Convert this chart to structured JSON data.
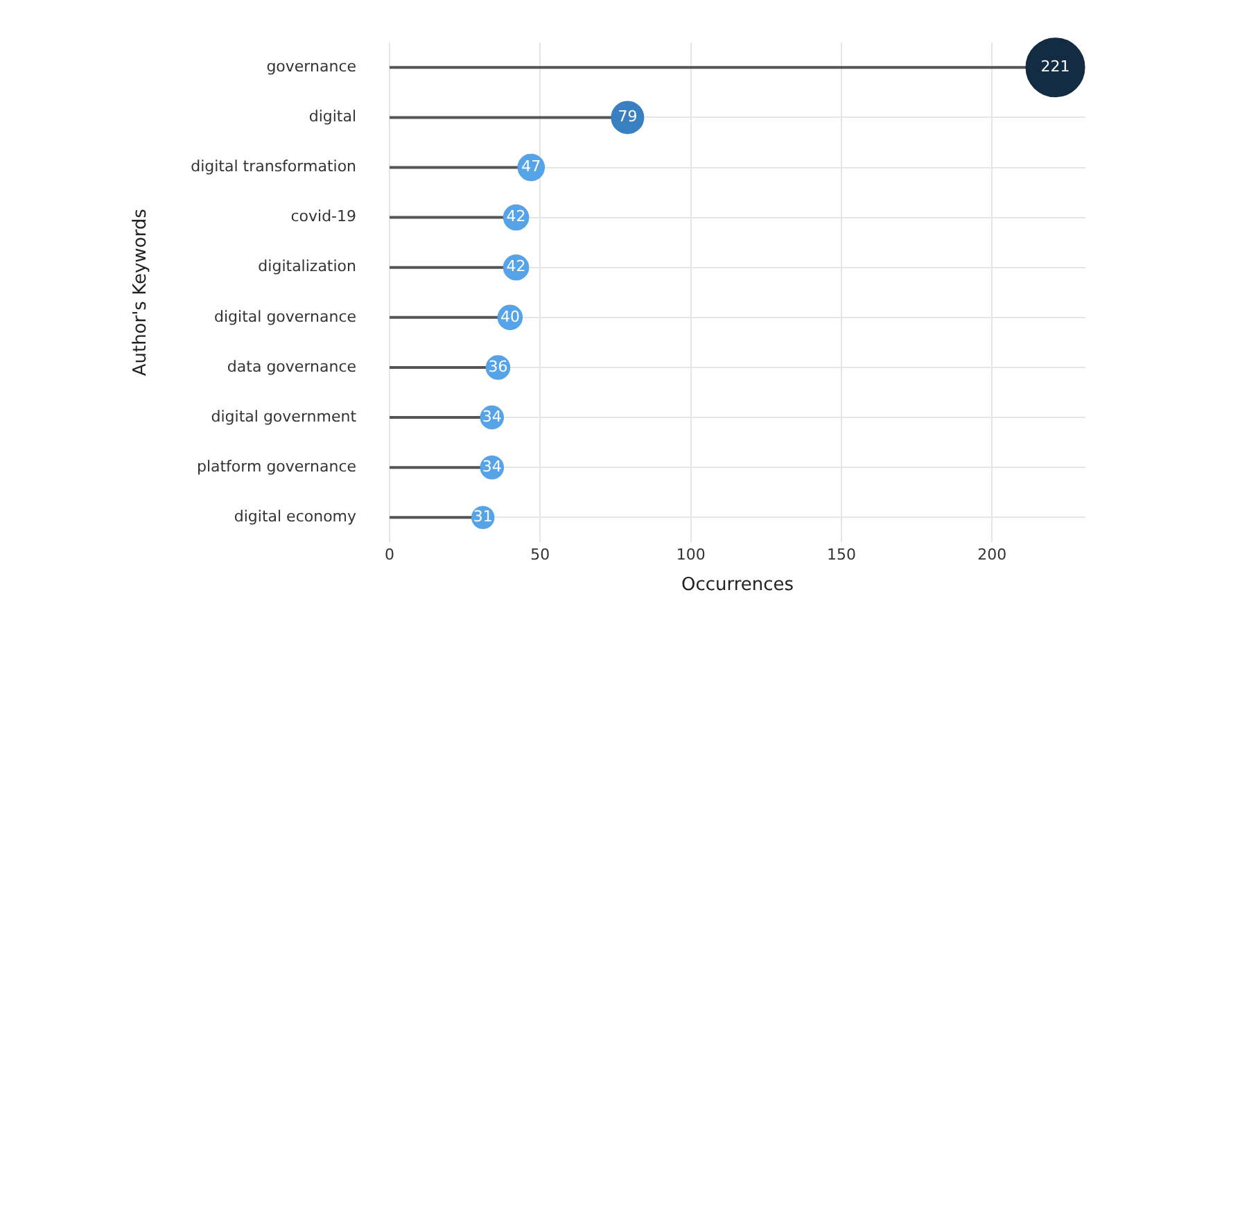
{
  "chart_data": {
    "type": "lollipop",
    "orientation": "horizontal",
    "xlabel": "Occurrences",
    "ylabel": "Author's Keywords",
    "categories": [
      "governance",
      "digital",
      "digital transformation",
      "covid-19",
      "digitalization",
      "digital governance",
      "data governance",
      "digital government",
      "platform governance",
      "digital economy"
    ],
    "values": [
      221,
      79,
      47,
      42,
      42,
      40,
      36,
      34,
      34,
      31
    ],
    "sizes": [
      1,
      0.3,
      0.2,
      0.18,
      0.18,
      0.17,
      0.16,
      0.15,
      0.15,
      0.14
    ],
    "colors": [
      "#132b43",
      "#3a7fc0",
      "#56a3e8",
      "#56a3e8",
      "#56a3e8",
      "#56a3e8",
      "#56a3e8",
      "#56a3e8",
      "#56a3e8",
      "#56a3e8"
    ],
    "xlim": [
      0,
      231
    ],
    "xticks": [
      0,
      50,
      100,
      150,
      200
    ],
    "grid": true,
    "data_labels": true
  }
}
